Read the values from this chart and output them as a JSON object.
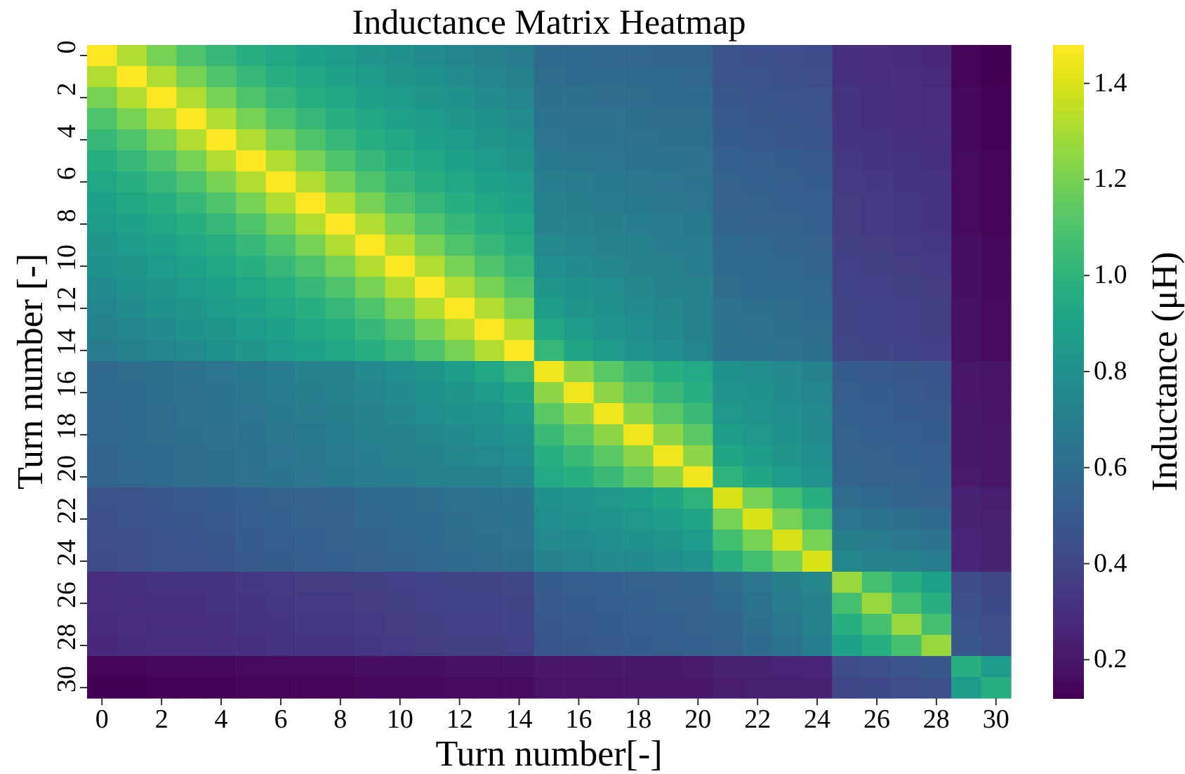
{
  "chart_data": {
    "type": "heatmap",
    "title": "Inductance Matrix Heatmap",
    "xlabel": "Turn number[-]",
    "ylabel": "Turn number [-]",
    "clabel": "Inductance (μH)",
    "categories": [
      "0",
      null,
      "2",
      null,
      "4",
      null,
      "6",
      null,
      "8",
      null,
      "10",
      null,
      "12",
      null,
      "14",
      null,
      "16",
      null,
      "18",
      null,
      "20",
      null,
      "22",
      null,
      "24",
      null,
      "26",
      null,
      "28",
      null,
      "30"
    ],
    "y_categories": [
      "0",
      null,
      "2",
      null,
      "4",
      null,
      "6",
      null,
      "8",
      null,
      "10",
      null,
      "12",
      null,
      "14",
      null,
      "16",
      null,
      "18",
      null,
      "20",
      null,
      "22",
      null,
      "24",
      null,
      "26",
      null,
      "28",
      null,
      "30"
    ],
    "clim": [
      0.12,
      1.48
    ],
    "cticks": [
      0.2,
      0.4,
      0.6,
      0.8,
      {
        "value": 1,
        "label": "1.0"
      },
      1.2,
      1.4
    ],
    "cells": [
      [
        1.48,
        1.32,
        1.2,
        1.1,
        1.03,
        0.97,
        0.93,
        0.89,
        0.86,
        0.83,
        0.8,
        0.77,
        0.74,
        0.71,
        0.68,
        0.58,
        0.58,
        0.57,
        0.57,
        0.56,
        0.56,
        0.46,
        0.45,
        0.44,
        0.43,
        0.3,
        0.29,
        0.28,
        0.27,
        0.14,
        0.12
      ],
      [
        1.32,
        1.48,
        1.32,
        1.2,
        1.1,
        1.03,
        0.97,
        0.93,
        0.89,
        0.86,
        0.83,
        0.8,
        0.77,
        0.74,
        0.71,
        0.6,
        0.59,
        0.59,
        0.58,
        0.58,
        0.57,
        0.47,
        0.46,
        0.45,
        0.44,
        0.31,
        0.3,
        0.29,
        0.28,
        0.14,
        0.12
      ],
      [
        1.2,
        1.32,
        1.48,
        1.32,
        1.2,
        1.1,
        1.03,
        0.97,
        0.93,
        0.89,
        0.86,
        0.83,
        0.8,
        0.77,
        0.74,
        0.61,
        0.61,
        0.6,
        0.6,
        0.59,
        0.59,
        0.49,
        0.48,
        0.47,
        0.46,
        0.32,
        0.31,
        0.3,
        0.29,
        0.15,
        0.13
      ],
      [
        1.1,
        1.2,
        1.32,
        1.48,
        1.32,
        1.2,
        1.1,
        1.03,
        0.97,
        0.93,
        0.89,
        0.86,
        0.83,
        0.8,
        0.77,
        0.63,
        0.62,
        0.62,
        0.61,
        0.6,
        0.6,
        0.5,
        0.49,
        0.48,
        0.47,
        0.32,
        0.31,
        0.3,
        0.29,
        0.15,
        0.13
      ],
      [
        1.03,
        1.1,
        1.2,
        1.32,
        1.48,
        1.32,
        1.2,
        1.1,
        1.03,
        0.97,
        0.93,
        0.89,
        0.86,
        0.83,
        0.8,
        0.65,
        0.64,
        0.63,
        0.62,
        0.61,
        0.61,
        0.51,
        0.5,
        0.49,
        0.48,
        0.33,
        0.32,
        0.31,
        0.3,
        0.15,
        0.13
      ],
      [
        0.97,
        1.03,
        1.1,
        1.2,
        1.32,
        1.48,
        1.32,
        1.2,
        1.1,
        1.03,
        0.97,
        0.93,
        0.89,
        0.86,
        0.83,
        0.67,
        0.66,
        0.65,
        0.64,
        0.63,
        0.62,
        0.53,
        0.52,
        0.51,
        0.5,
        0.34,
        0.33,
        0.32,
        0.31,
        0.16,
        0.14
      ],
      [
        0.93,
        0.97,
        1.03,
        1.1,
        1.2,
        1.32,
        1.48,
        1.32,
        1.2,
        1.1,
        1.03,
        0.97,
        0.93,
        0.89,
        0.86,
        0.69,
        0.68,
        0.67,
        0.66,
        0.65,
        0.64,
        0.54,
        0.53,
        0.52,
        0.51,
        0.35,
        0.34,
        0.33,
        0.32,
        0.16,
        0.14
      ],
      [
        0.89,
        0.93,
        0.97,
        1.03,
        1.1,
        1.2,
        1.32,
        1.48,
        1.32,
        1.2,
        1.1,
        1.03,
        0.97,
        0.93,
        0.89,
        0.71,
        0.7,
        0.68,
        0.67,
        0.66,
        0.65,
        0.55,
        0.54,
        0.53,
        0.52,
        0.36,
        0.35,
        0.34,
        0.33,
        0.16,
        0.14
      ],
      [
        0.86,
        0.89,
        0.93,
        0.97,
        1.03,
        1.1,
        1.2,
        1.32,
        1.48,
        1.32,
        1.2,
        1.1,
        1.03,
        0.97,
        0.93,
        0.73,
        0.72,
        0.7,
        0.69,
        0.68,
        0.67,
        0.56,
        0.55,
        0.54,
        0.53,
        0.36,
        0.35,
        0.34,
        0.33,
        0.16,
        0.14
      ],
      [
        0.83,
        0.86,
        0.89,
        0.93,
        0.97,
        1.03,
        1.1,
        1.2,
        1.32,
        1.48,
        1.32,
        1.2,
        1.1,
        1.03,
        0.97,
        0.76,
        0.74,
        0.72,
        0.71,
        0.69,
        0.68,
        0.58,
        0.57,
        0.56,
        0.55,
        0.37,
        0.36,
        0.35,
        0.34,
        0.17,
        0.15
      ],
      [
        0.8,
        0.83,
        0.86,
        0.89,
        0.93,
        0.97,
        1.03,
        1.1,
        1.2,
        1.32,
        1.48,
        1.32,
        1.2,
        1.1,
        1.03,
        0.79,
        0.77,
        0.75,
        0.73,
        0.71,
        0.69,
        0.59,
        0.58,
        0.57,
        0.56,
        0.38,
        0.37,
        0.36,
        0.35,
        0.17,
        0.15
      ],
      [
        0.77,
        0.8,
        0.83,
        0.86,
        0.89,
        0.93,
        0.97,
        1.03,
        1.1,
        1.2,
        1.32,
        1.48,
        1.32,
        1.2,
        1.1,
        0.83,
        0.8,
        0.78,
        0.75,
        0.73,
        0.71,
        0.6,
        0.59,
        0.58,
        0.57,
        0.39,
        0.38,
        0.37,
        0.36,
        0.17,
        0.15
      ],
      [
        0.74,
        0.77,
        0.8,
        0.83,
        0.86,
        0.89,
        0.93,
        0.97,
        1.03,
        1.1,
        1.2,
        1.32,
        1.48,
        1.32,
        1.2,
        0.87,
        0.83,
        0.8,
        0.77,
        0.75,
        0.72,
        0.62,
        0.61,
        0.6,
        0.59,
        0.4,
        0.39,
        0.38,
        0.37,
        0.18,
        0.16
      ],
      [
        0.71,
        0.74,
        0.77,
        0.8,
        0.83,
        0.86,
        0.89,
        0.93,
        0.97,
        1.03,
        1.1,
        1.2,
        1.32,
        1.48,
        1.32,
        0.93,
        0.86,
        0.82,
        0.79,
        0.76,
        0.73,
        0.63,
        0.62,
        0.61,
        0.6,
        0.4,
        0.39,
        0.38,
        0.37,
        0.18,
        0.16
      ],
      [
        0.68,
        0.71,
        0.74,
        0.77,
        0.8,
        0.83,
        0.86,
        0.89,
        0.93,
        0.97,
        1.03,
        1.1,
        1.2,
        1.32,
        1.48,
        1.02,
        0.92,
        0.86,
        0.82,
        0.78,
        0.74,
        0.64,
        0.63,
        0.62,
        0.61,
        0.41,
        0.4,
        0.39,
        0.38,
        0.18,
        0.16
      ],
      [
        0.58,
        0.6,
        0.61,
        0.63,
        0.65,
        0.67,
        0.69,
        0.71,
        0.73,
        0.76,
        0.79,
        0.83,
        0.87,
        0.93,
        1.02,
        1.45,
        1.25,
        1.13,
        1.04,
        0.98,
        0.94,
        0.8,
        0.78,
        0.76,
        0.73,
        0.51,
        0.5,
        0.49,
        0.48,
        0.2,
        0.19
      ],
      [
        0.58,
        0.59,
        0.61,
        0.62,
        0.64,
        0.66,
        0.68,
        0.7,
        0.72,
        0.74,
        0.77,
        0.8,
        0.83,
        0.86,
        0.92,
        1.25,
        1.45,
        1.25,
        1.13,
        1.04,
        0.98,
        0.82,
        0.8,
        0.77,
        0.74,
        0.52,
        0.51,
        0.5,
        0.49,
        0.2,
        0.19
      ],
      [
        0.57,
        0.59,
        0.6,
        0.62,
        0.63,
        0.65,
        0.67,
        0.68,
        0.7,
        0.72,
        0.75,
        0.78,
        0.8,
        0.82,
        0.86,
        1.13,
        1.25,
        1.45,
        1.25,
        1.13,
        1.04,
        0.84,
        0.82,
        0.79,
        0.76,
        0.53,
        0.52,
        0.51,
        0.5,
        0.21,
        0.19
      ],
      [
        0.57,
        0.58,
        0.6,
        0.61,
        0.62,
        0.64,
        0.66,
        0.67,
        0.69,
        0.71,
        0.73,
        0.75,
        0.77,
        0.79,
        0.82,
        1.04,
        1.13,
        1.25,
        1.45,
        1.25,
        1.13,
        0.87,
        0.84,
        0.81,
        0.77,
        0.54,
        0.53,
        0.52,
        0.51,
        0.21,
        0.2
      ],
      [
        0.56,
        0.58,
        0.59,
        0.6,
        0.61,
        0.63,
        0.65,
        0.66,
        0.68,
        0.69,
        0.71,
        0.73,
        0.75,
        0.76,
        0.78,
        0.98,
        1.04,
        1.13,
        1.25,
        1.45,
        1.25,
        0.92,
        0.87,
        0.83,
        0.79,
        0.55,
        0.54,
        0.53,
        0.52,
        0.21,
        0.2
      ],
      [
        0.56,
        0.57,
        0.59,
        0.6,
        0.61,
        0.62,
        0.64,
        0.65,
        0.67,
        0.68,
        0.69,
        0.71,
        0.72,
        0.73,
        0.74,
        0.94,
        0.98,
        1.04,
        1.13,
        1.25,
        1.45,
        1.0,
        0.92,
        0.86,
        0.82,
        0.56,
        0.55,
        0.54,
        0.53,
        0.22,
        0.2
      ],
      [
        0.46,
        0.47,
        0.49,
        0.5,
        0.51,
        0.53,
        0.54,
        0.55,
        0.56,
        0.58,
        0.59,
        0.6,
        0.62,
        0.63,
        0.64,
        0.8,
        0.82,
        0.84,
        0.87,
        0.92,
        1.0,
        1.4,
        1.2,
        1.07,
        0.97,
        0.6,
        0.58,
        0.56,
        0.54,
        0.25,
        0.23
      ],
      [
        0.45,
        0.46,
        0.48,
        0.49,
        0.5,
        0.52,
        0.53,
        0.54,
        0.55,
        0.57,
        0.58,
        0.59,
        0.61,
        0.62,
        0.63,
        0.78,
        0.8,
        0.82,
        0.84,
        0.87,
        0.92,
        1.2,
        1.4,
        1.2,
        1.07,
        0.65,
        0.63,
        0.61,
        0.59,
        0.25,
        0.24
      ],
      [
        0.44,
        0.45,
        0.47,
        0.48,
        0.49,
        0.51,
        0.52,
        0.53,
        0.54,
        0.56,
        0.57,
        0.58,
        0.6,
        0.61,
        0.62,
        0.76,
        0.77,
        0.79,
        0.81,
        0.83,
        0.86,
        1.07,
        1.2,
        1.4,
        1.2,
        0.7,
        0.68,
        0.66,
        0.64,
        0.26,
        0.24
      ],
      [
        0.43,
        0.44,
        0.46,
        0.47,
        0.48,
        0.5,
        0.51,
        0.52,
        0.53,
        0.55,
        0.56,
        0.57,
        0.59,
        0.6,
        0.61,
        0.73,
        0.74,
        0.76,
        0.77,
        0.79,
        0.82,
        0.97,
        1.07,
        1.2,
        1.4,
        0.75,
        0.73,
        0.71,
        0.69,
        0.26,
        0.25
      ],
      [
        0.3,
        0.31,
        0.32,
        0.32,
        0.33,
        0.34,
        0.35,
        0.36,
        0.36,
        0.37,
        0.38,
        0.39,
        0.4,
        0.4,
        0.41,
        0.51,
        0.52,
        0.53,
        0.54,
        0.55,
        0.56,
        0.6,
        0.65,
        0.7,
        0.75,
        1.27,
        1.08,
        0.97,
        0.9,
        0.43,
        0.41
      ],
      [
        0.29,
        0.3,
        0.31,
        0.31,
        0.32,
        0.33,
        0.34,
        0.35,
        0.35,
        0.36,
        0.37,
        0.38,
        0.39,
        0.39,
        0.4,
        0.5,
        0.51,
        0.52,
        0.53,
        0.54,
        0.55,
        0.58,
        0.63,
        0.68,
        0.73,
        1.08,
        1.27,
        1.08,
        0.97,
        0.45,
        0.42
      ],
      [
        0.28,
        0.29,
        0.3,
        0.3,
        0.31,
        0.32,
        0.33,
        0.34,
        0.34,
        0.35,
        0.36,
        0.37,
        0.38,
        0.38,
        0.39,
        0.49,
        0.5,
        0.51,
        0.52,
        0.53,
        0.54,
        0.56,
        0.61,
        0.66,
        0.71,
        0.97,
        1.08,
        1.27,
        1.08,
        0.47,
        0.44
      ],
      [
        0.27,
        0.28,
        0.29,
        0.29,
        0.3,
        0.31,
        0.32,
        0.33,
        0.33,
        0.34,
        0.35,
        0.36,
        0.37,
        0.37,
        0.38,
        0.48,
        0.49,
        0.5,
        0.51,
        0.52,
        0.53,
        0.54,
        0.59,
        0.64,
        0.69,
        0.9,
        0.97,
        1.08,
        1.27,
        0.49,
        0.45
      ],
      [
        0.14,
        0.14,
        0.15,
        0.15,
        0.15,
        0.16,
        0.16,
        0.16,
        0.16,
        0.17,
        0.17,
        0.17,
        0.18,
        0.18,
        0.18,
        0.2,
        0.2,
        0.21,
        0.21,
        0.21,
        0.22,
        0.25,
        0.25,
        0.26,
        0.26,
        0.43,
        0.45,
        0.47,
        0.49,
        0.98,
        0.86
      ],
      [
        0.12,
        0.12,
        0.13,
        0.13,
        0.13,
        0.14,
        0.14,
        0.14,
        0.14,
        0.15,
        0.15,
        0.15,
        0.16,
        0.16,
        0.16,
        0.19,
        0.19,
        0.19,
        0.2,
        0.2,
        0.2,
        0.23,
        0.24,
        0.24,
        0.25,
        0.41,
        0.42,
        0.44,
        0.45,
        0.86,
        0.98
      ]
    ]
  }
}
